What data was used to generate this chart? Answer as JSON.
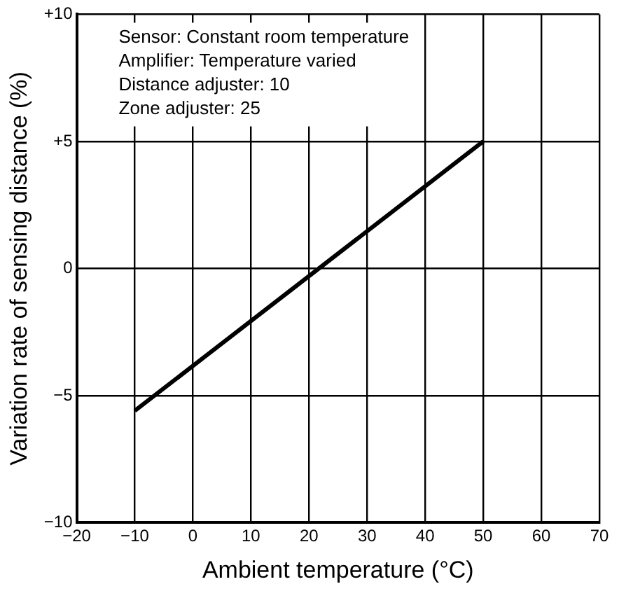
{
  "chart_data": {
    "type": "line",
    "xlabel": "Ambient temperature (°C)",
    "ylabel": "Variation rate of sensing distance (%)",
    "annotations": [
      "Sensor: Constant room temperature",
      "Amplifier: Temperature varied",
      "Distance adjuster: 10",
      "Zone adjuster: 25"
    ],
    "series": [
      {
        "color": "#000000",
        "x": [
          -10,
          50
        ],
        "values": [
          -5.6,
          5.0
        ]
      }
    ],
    "xlim": [
      -20,
      70
    ],
    "xticks": [
      {
        "value": -20,
        "label": "−20"
      },
      {
        "value": -10,
        "label": "−10"
      },
      0,
      10,
      20,
      30,
      40,
      50,
      60,
      70
    ],
    "ylim": [
      -10,
      10
    ],
    "yticks": [
      {
        "value": -10,
        "label": "−10"
      },
      {
        "value": -5,
        "label": "−5"
      },
      0,
      {
        "value": 5,
        "label": "+5"
      },
      {
        "value": 10,
        "label": "+10"
      }
    ],
    "grid": true,
    "legend": false,
    "marker": "none",
    "line_style": "solid"
  }
}
